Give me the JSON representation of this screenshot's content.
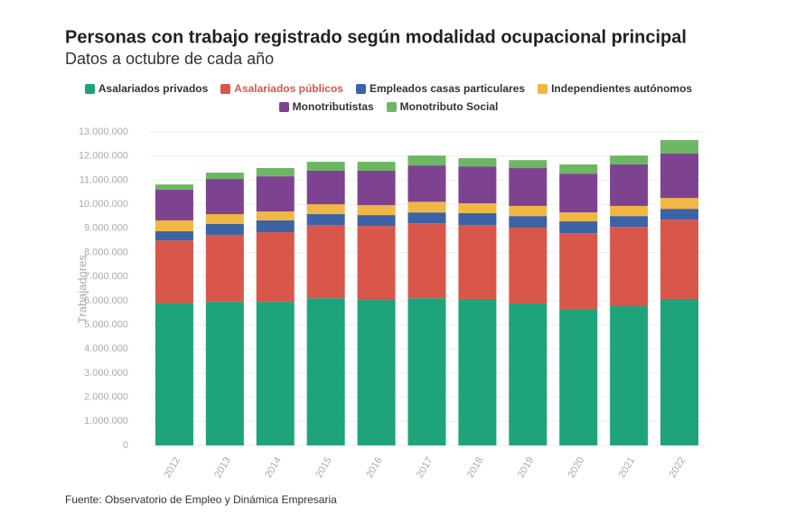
{
  "chart_data": {
    "type": "stacked_bar",
    "title": "Personas con trabajo registrado según modalidad ocupacional principal",
    "subtitle": "Datos a octubre de cada año",
    "y_label": "Trabajadores",
    "source": "Fuente: Observatorio de Empleo y Dinámica Empresaria",
    "categories": [
      "2012",
      "2013",
      "2014",
      "2015",
      "2016",
      "2017",
      "2018",
      "2019",
      "2020",
      "2021",
      "2022"
    ],
    "series": [
      {
        "name": "Asalariados privados",
        "color": "#1fa37b",
        "values": [
          5900000,
          5950000,
          5950000,
          6100000,
          6030000,
          6100000,
          6070000,
          5880000,
          5660000,
          5770000,
          6070000
        ]
      },
      {
        "name": "Asalariados públicos",
        "color": "#d9574a",
        "values": [
          2600000,
          2780000,
          2890000,
          3040000,
          3070000,
          3110000,
          3070000,
          3150000,
          3140000,
          3290000,
          3290000
        ]
      },
      {
        "name": "Empleados casas particulares",
        "color": "#3b63a5",
        "values": [
          380000,
          450000,
          490000,
          450000,
          450000,
          450000,
          490000,
          480000,
          490000,
          450000,
          450000
        ]
      },
      {
        "name": "Independientes autónomos",
        "color": "#f1b744",
        "values": [
          450000,
          410000,
          370000,
          410000,
          410000,
          440000,
          410000,
          420000,
          370000,
          420000,
          450000
        ]
      },
      {
        "name": "Monotributistas",
        "color": "#7d4390",
        "values": [
          1270000,
          1460000,
          1460000,
          1390000,
          1430000,
          1510000,
          1530000,
          1570000,
          1610000,
          1720000,
          1840000
        ]
      },
      {
        "name": "Monotributo Social",
        "color": "#6db663",
        "values": [
          220000,
          260000,
          340000,
          370000,
          370000,
          410000,
          340000,
          330000,
          380000,
          370000,
          560000
        ]
      }
    ],
    "ylim": [
      0,
      13000000
    ],
    "yticks": [
      0,
      {
        "value": 1000000,
        "label": "1.000.000"
      },
      {
        "value": 2000000,
        "label": "2.000.000"
      },
      {
        "value": 3000000,
        "label": "3.000.000"
      },
      {
        "value": 4000000,
        "label": "4.000.000"
      },
      {
        "value": 5000000,
        "label": "5.000.000"
      },
      {
        "value": 6000000,
        "label": "6.000.000"
      },
      {
        "value": 7000000,
        "label": "7.000.000"
      },
      {
        "value": 8000000,
        "label": "8.000.000"
      },
      {
        "value": 9000000,
        "label": "9.000.000"
      },
      {
        "value": 10000000,
        "label": "10.000.000"
      },
      {
        "value": 11000000,
        "label": "11.000.000"
      },
      {
        "value": 12000000,
        "label": "12.000.000"
      },
      {
        "value": 13000000,
        "label": "13.000.000"
      }
    ],
    "grid": true
  }
}
